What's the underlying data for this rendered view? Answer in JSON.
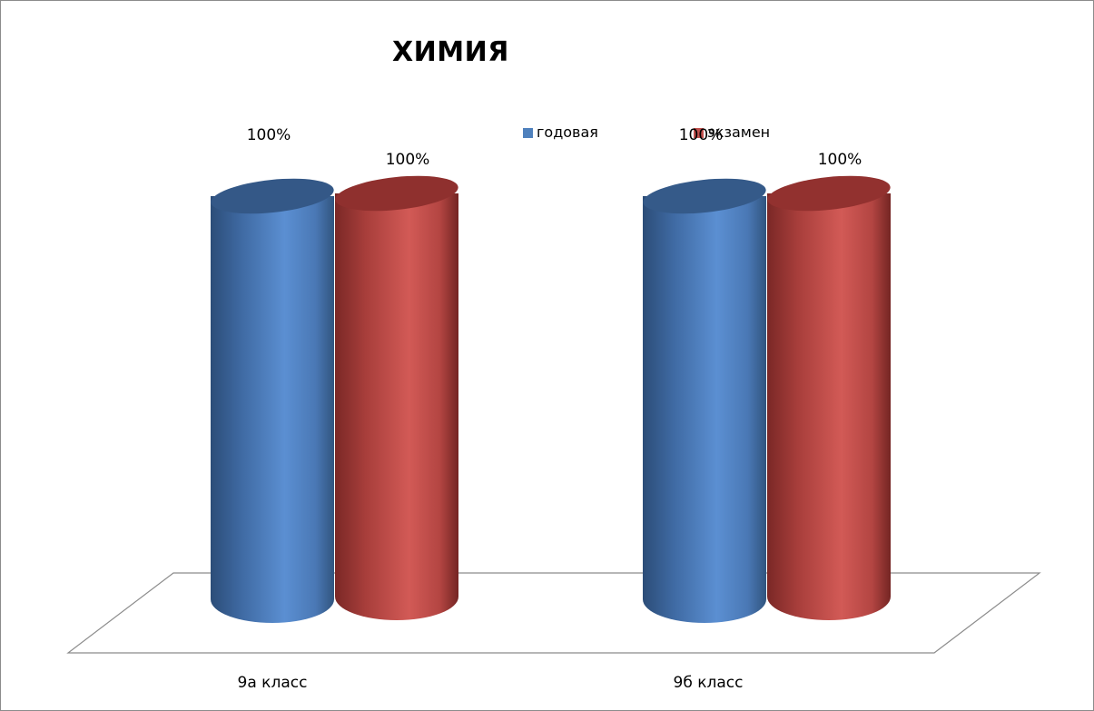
{
  "chart_data": {
    "type": "bar",
    "style": "3d-cylinder",
    "title": "ХИМИЯ",
    "categories": [
      "9а класс",
      "9б класс"
    ],
    "series": [
      {
        "name": "годовая",
        "values": [
          100,
          100
        ],
        "labels": [
          "100%",
          "100%"
        ],
        "color": "#4f81bd"
      },
      {
        "name": "экзамен",
        "values": [
          100,
          100
        ],
        "labels": [
          "100%",
          "100%"
        ],
        "color": "#c0504d"
      }
    ],
    "ylim": [
      0,
      100
    ],
    "legend": "top-right",
    "grid": false
  }
}
